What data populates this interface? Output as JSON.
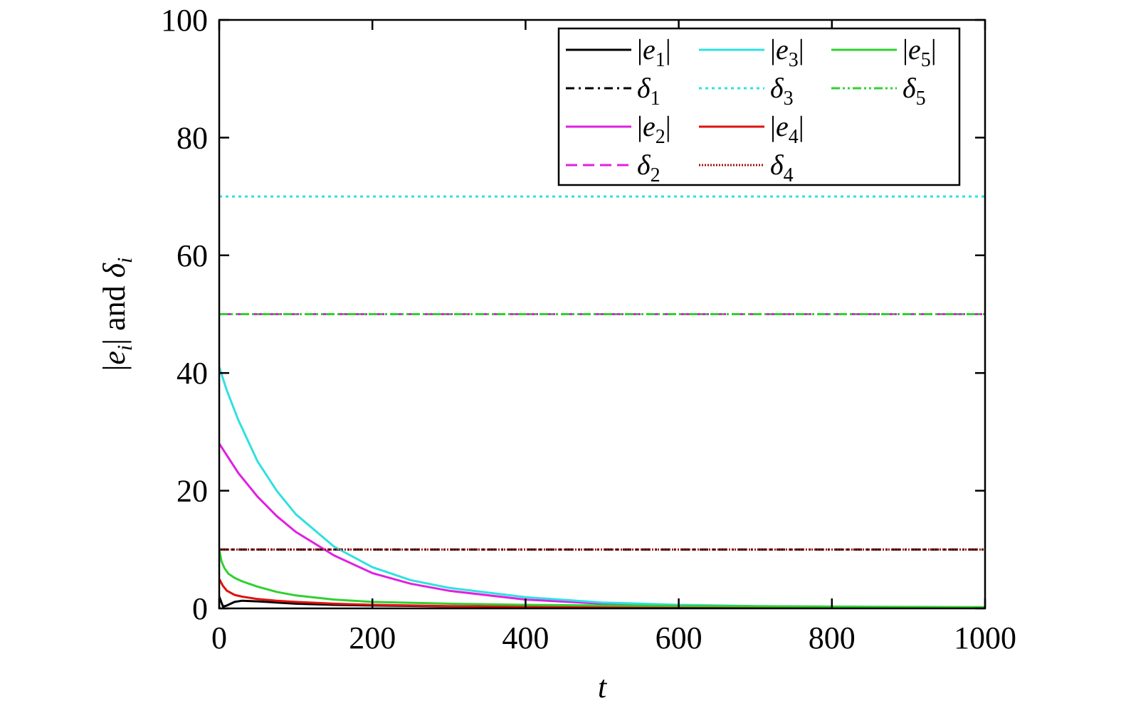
{
  "chart_data": {
    "type": "line",
    "title": "",
    "xlabel": "t",
    "ylabel": {
      "prefix": "|",
      "var": "e",
      "sub": "i",
      "mid": "| and ",
      "var2": "δ",
      "sub2": "i"
    },
    "xlim": [
      0,
      1000
    ],
    "ylim": [
      0,
      100
    ],
    "xticks": [
      "0",
      "200",
      "400",
      "600",
      "800",
      "1000"
    ],
    "yticks": [
      "0",
      "20",
      "40",
      "60",
      "80",
      "100"
    ],
    "xtick_values": [
      0,
      200,
      400,
      600,
      800,
      1000
    ],
    "ytick_values": [
      0,
      20,
      40,
      60,
      80,
      100
    ],
    "grid": false,
    "legend_position": "top-right",
    "series": [
      {
        "name": "|e1|",
        "label": {
          "bar": true,
          "var": "e",
          "sub": "1"
        },
        "color": "#000000",
        "dash": "solid",
        "x": [
          0,
          5,
          10,
          20,
          30,
          50,
          75,
          100,
          150,
          200,
          300,
          400,
          500,
          600,
          700,
          800,
          900,
          1000
        ],
        "y": [
          2.0,
          0.3,
          0.5,
          1.1,
          1.3,
          1.2,
          1.0,
          0.8,
          0.6,
          0.5,
          0.35,
          0.25,
          0.2,
          0.15,
          0.12,
          0.1,
          0.08,
          0.05
        ]
      },
      {
        "name": "δ1",
        "label": {
          "bar": false,
          "var": "δ",
          "sub": "1"
        },
        "color": "#000000",
        "dash": "dashdot",
        "x": [
          0,
          1000
        ],
        "y": [
          10,
          10
        ]
      },
      {
        "name": "|e2|",
        "label": {
          "bar": true,
          "var": "e",
          "sub": "2"
        },
        "color": "#e020e0",
        "dash": "solid",
        "x": [
          0,
          10,
          25,
          50,
          75,
          100,
          150,
          200,
          250,
          300,
          400,
          500,
          600,
          700,
          800,
          900,
          1000
        ],
        "y": [
          28,
          26.0,
          23.0,
          19.0,
          15.7,
          13.0,
          9.0,
          6.0,
          4.2,
          3.0,
          1.5,
          0.8,
          0.5,
          0.35,
          0.25,
          0.18,
          0.12
        ]
      },
      {
        "name": "δ2",
        "label": {
          "bar": false,
          "var": "δ",
          "sub": "2"
        },
        "color": "#e020e0",
        "dash": "dash",
        "x": [
          0,
          1000
        ],
        "y": [
          50,
          50
        ]
      },
      {
        "name": "|e3|",
        "label": {
          "bar": true,
          "var": "e",
          "sub": "3"
        },
        "color": "#30e0e0",
        "dash": "solid",
        "x": [
          0,
          10,
          25,
          50,
          75,
          100,
          150,
          200,
          250,
          300,
          400,
          500,
          600,
          700,
          800,
          900,
          1000
        ],
        "y": [
          41,
          37.0,
          32.0,
          25.0,
          20.0,
          16.0,
          10.5,
          7.0,
          4.8,
          3.5,
          1.9,
          1.0,
          0.6,
          0.4,
          0.3,
          0.2,
          0.15
        ]
      },
      {
        "name": "δ3",
        "label": {
          "bar": false,
          "var": "δ",
          "sub": "3"
        },
        "color": "#30e0e0",
        "dash": "dot",
        "x": [
          0,
          1000
        ],
        "y": [
          70,
          70
        ]
      },
      {
        "name": "|e4|",
        "label": {
          "bar": true,
          "var": "e",
          "sub": "4"
        },
        "color": "#e01010",
        "dash": "solid",
        "x": [
          0,
          5,
          10,
          20,
          30,
          50,
          75,
          100,
          150,
          200,
          300,
          400,
          500,
          600,
          700,
          800,
          900,
          1000
        ],
        "y": [
          5,
          3.8,
          3.0,
          2.3,
          2.0,
          1.6,
          1.3,
          1.1,
          0.8,
          0.6,
          0.4,
          0.3,
          0.22,
          0.16,
          0.12,
          0.1,
          0.08,
          0.06
        ]
      },
      {
        "name": "δ4",
        "label": {
          "bar": false,
          "var": "δ",
          "sub": "4"
        },
        "color": "#a01010",
        "dash": "densedot",
        "x": [
          0,
          1000
        ],
        "y": [
          10,
          10
        ]
      },
      {
        "name": "|e5|",
        "label": {
          "bar": true,
          "var": "e",
          "sub": "5"
        },
        "color": "#30d030",
        "dash": "solid",
        "x": [
          0,
          3,
          7,
          12,
          20,
          30,
          50,
          75,
          100,
          150,
          200,
          300,
          400,
          500,
          600,
          700,
          800,
          900,
          1000
        ],
        "y": [
          10,
          8.0,
          6.8,
          5.9,
          5.2,
          4.6,
          3.7,
          2.8,
          2.2,
          1.5,
          1.1,
          0.8,
          0.6,
          0.5,
          0.42,
          0.36,
          0.3,
          0.25,
          0.2
        ]
      },
      {
        "name": "δ5",
        "label": {
          "bar": false,
          "var": "δ",
          "sub": "5"
        },
        "color": "#30d030",
        "dash": "dashdotdot",
        "x": [
          0,
          1000
        ],
        "y": [
          50,
          50
        ]
      }
    ]
  }
}
